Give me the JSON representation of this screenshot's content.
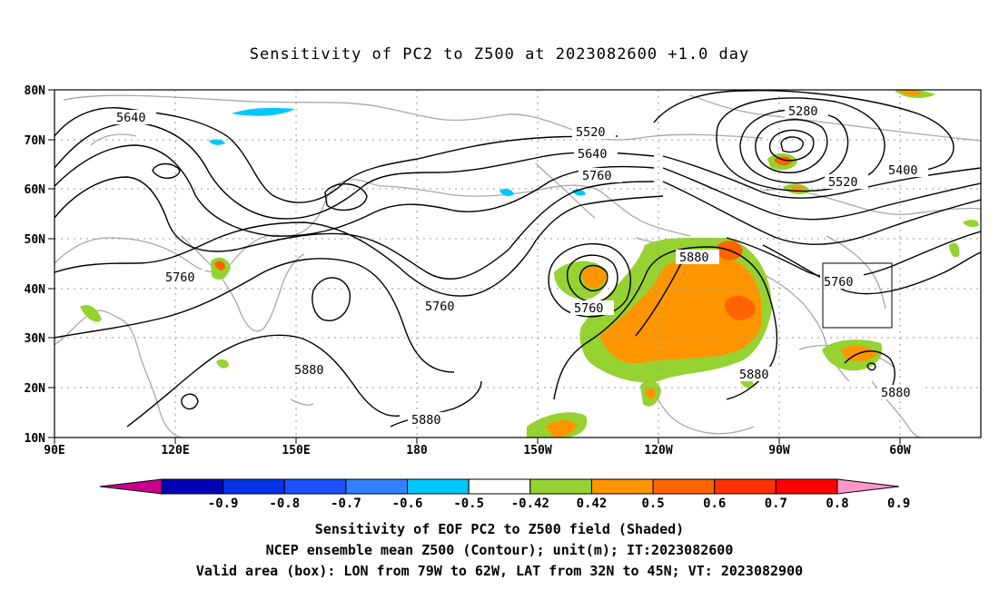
{
  "title": "Sensitivity of PC2 to Z500 at 2023082600 +1.0 day",
  "map": {
    "lon_labels": [
      "90E",
      "120E",
      "150E",
      "180",
      "150W",
      "120W",
      "90W",
      "60W"
    ],
    "lat_labels": [
      "80N",
      "70N",
      "60N",
      "50N",
      "40N",
      "30N",
      "20N",
      "10N"
    ],
    "valid_box": {
      "lon_west": "79W",
      "lon_east": "62W",
      "lat_south": "32N",
      "lat_north": "45N"
    },
    "contour_labels": [
      {
        "text": "5640"
      },
      {
        "text": "5520"
      },
      {
        "text": "5640"
      },
      {
        "text": "5760"
      },
      {
        "text": "5280"
      },
      {
        "text": "5400"
      },
      {
        "text": "5520"
      },
      {
        "text": "5760"
      },
      {
        "text": "5760"
      },
      {
        "text": "5760"
      },
      {
        "text": "5880"
      },
      {
        "text": "5760"
      },
      {
        "text": "5880"
      },
      {
        "text": "5880"
      },
      {
        "text": "5880"
      },
      {
        "text": "5880"
      }
    ]
  },
  "colorbar": {
    "labels": [
      "-0.9",
      "-0.8",
      "-0.7",
      "-0.6",
      "-0.5",
      "-0.42",
      "0.42",
      "0.5",
      "0.6",
      "0.7",
      "0.8",
      "0.9"
    ],
    "colors": [
      "#c8008c",
      "#0000b4",
      "#0032e6",
      "#1e50ff",
      "#3282ff",
      "#00c8ff",
      "#ffffff",
      "#96d232",
      "#ff9600",
      "#ff6400",
      "#ff3200",
      "#ff0000",
      "#ff96c8"
    ]
  },
  "captions": {
    "line1": "Sensitivity of EOF PC2 to Z500 field (Shaded)",
    "line2": "NCEP ensemble mean Z500 (Contour); unit(m); IT:2023082600",
    "line3": "Valid area (box): LON from 79W to 62W, LAT from 32N to 45N; VT: 2023082900"
  }
}
